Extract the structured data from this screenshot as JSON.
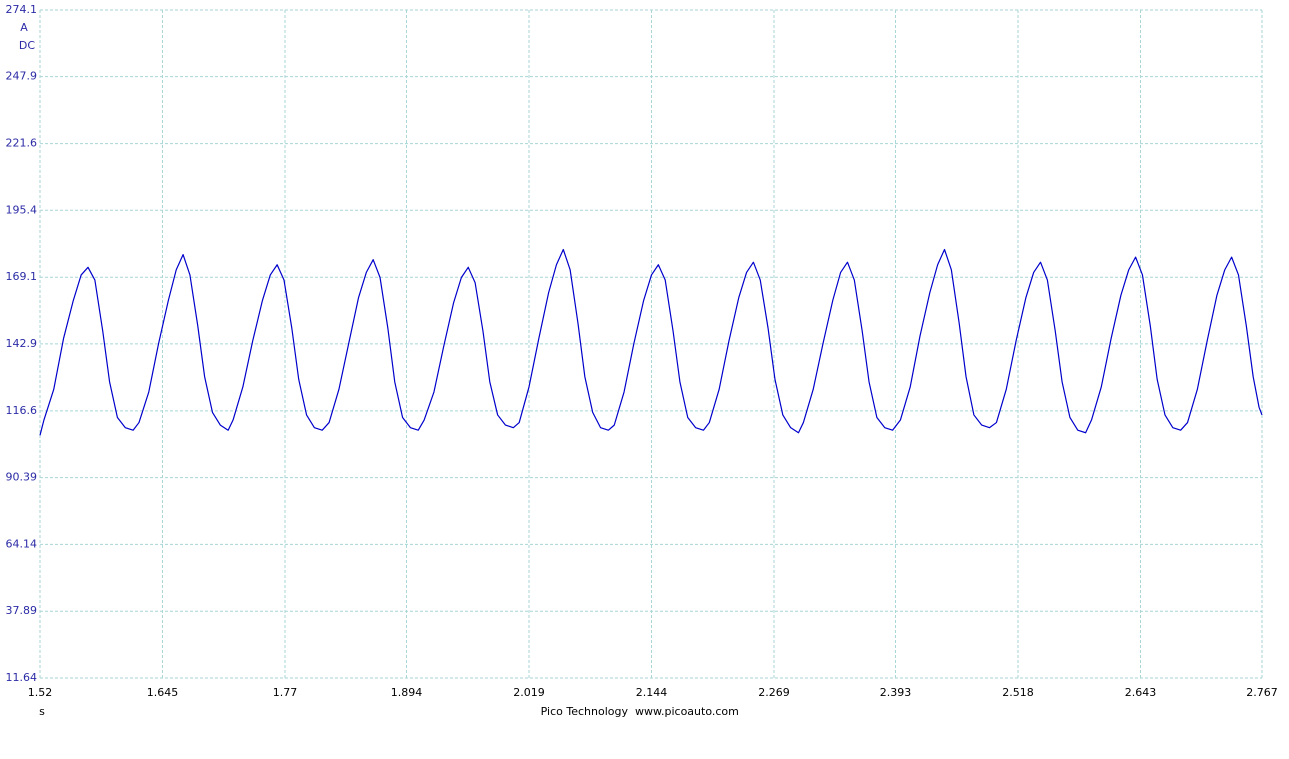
{
  "chart_data": {
    "type": "line",
    "y_unit": "A",
    "coupling": "DC",
    "x_unit": "s",
    "credit": "Pico Technology",
    "website": "www.picoauto.com",
    "xlim": [
      1.52,
      2.767
    ],
    "ylim": [
      11.64,
      274.1
    ],
    "xticks": [
      1.52,
      1.645,
      1.77,
      1.894,
      2.019,
      2.144,
      2.269,
      2.393,
      2.518,
      2.643,
      2.767
    ],
    "yticks": [
      11.64,
      37.89,
      64.14,
      90.39,
      116.6,
      142.9,
      169.1,
      195.4,
      221.6,
      247.9,
      274.1
    ],
    "grid": true,
    "x": [
      1.52,
      1.524,
      1.534,
      1.544,
      1.554,
      1.562,
      1.569,
      1.576,
      1.584,
      1.591,
      1.599,
      1.607,
      1.615,
      1.621,
      1.631,
      1.641,
      1.651,
      1.659,
      1.666,
      1.673,
      1.681,
      1.688,
      1.696,
      1.704,
      1.712,
      1.717,
      1.727,
      1.737,
      1.747,
      1.755,
      1.762,
      1.769,
      1.777,
      1.784,
      1.792,
      1.8,
      1.808,
      1.815,
      1.825,
      1.835,
      1.845,
      1.853,
      1.86,
      1.867,
      1.875,
      1.882,
      1.89,
      1.898,
      1.906,
      1.912,
      1.922,
      1.932,
      1.942,
      1.95,
      1.957,
      1.964,
      1.972,
      1.979,
      1.987,
      1.995,
      2.003,
      2.009,
      2.019,
      2.029,
      2.039,
      2.047,
      2.054,
      2.061,
      2.069,
      2.076,
      2.084,
      2.092,
      2.1,
      2.106,
      2.116,
      2.126,
      2.136,
      2.144,
      2.151,
      2.158,
      2.166,
      2.173,
      2.181,
      2.189,
      2.197,
      2.203,
      2.213,
      2.223,
      2.233,
      2.241,
      2.248,
      2.255,
      2.263,
      2.27,
      2.278,
      2.286,
      2.294,
      2.299,
      2.309,
      2.319,
      2.329,
      2.337,
      2.344,
      2.351,
      2.359,
      2.366,
      2.374,
      2.382,
      2.39,
      2.398,
      2.408,
      2.418,
      2.428,
      2.436,
      2.443,
      2.45,
      2.458,
      2.465,
      2.473,
      2.481,
      2.489,
      2.496,
      2.506,
      2.516,
      2.526,
      2.534,
      2.541,
      2.548,
      2.556,
      2.563,
      2.571,
      2.579,
      2.587,
      2.593,
      2.603,
      2.613,
      2.623,
      2.631,
      2.638,
      2.645,
      2.653,
      2.66,
      2.668,
      2.676,
      2.684,
      2.691,
      2.701,
      2.711,
      2.721,
      2.729,
      2.736,
      2.743,
      2.751,
      2.758,
      2.764,
      2.767
    ],
    "series": [
      {
        "color": "#0000cc",
        "values": [
          107,
          113,
          125,
          145,
          160,
          170,
          173,
          168,
          148,
          128,
          114,
          110,
          109,
          112,
          124,
          143,
          160,
          172,
          178,
          170,
          150,
          130,
          116,
          111,
          109,
          113,
          126,
          144,
          160,
          170,
          174,
          168,
          149,
          129,
          115,
          110,
          109,
          112,
          125,
          143,
          161,
          171,
          176,
          169,
          149,
          128,
          114,
          110,
          109,
          113,
          124,
          142,
          159,
          169,
          173,
          167,
          148,
          128,
          115,
          111,
          110,
          112,
          126,
          145,
          163,
          174,
          180,
          172,
          151,
          130,
          116,
          110,
          109,
          111,
          124,
          143,
          160,
          170,
          174,
          168,
          148,
          128,
          114,
          110,
          109,
          112,
          125,
          144,
          161,
          171,
          175,
          168,
          149,
          129,
          115,
          110,
          108,
          112,
          125,
          143,
          160,
          171,
          175,
          168,
          148,
          128,
          114,
          110,
          109,
          113,
          126,
          146,
          163,
          174,
          180,
          172,
          151,
          130,
          115,
          111,
          110,
          112,
          125,
          144,
          161,
          171,
          175,
          168,
          148,
          128,
          114,
          109,
          108,
          113,
          126,
          145,
          162,
          172,
          177,
          170,
          150,
          129,
          115,
          110,
          109,
          112,
          125,
          144,
          162,
          172,
          177,
          170,
          150,
          130,
          118,
          115
        ]
      }
    ]
  }
}
